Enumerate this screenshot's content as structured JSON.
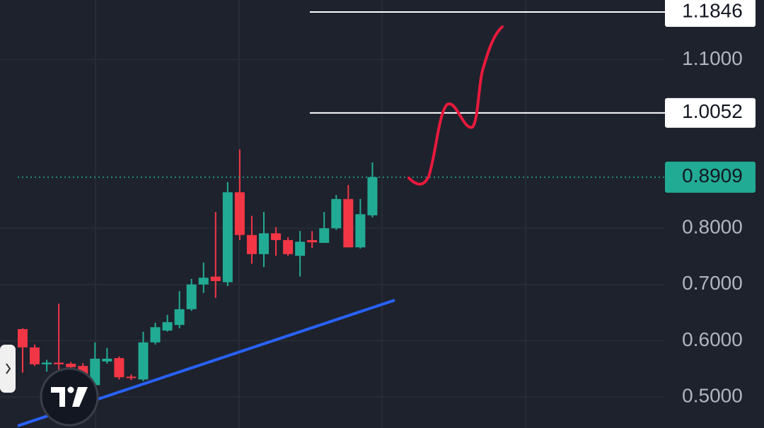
{
  "chart_data": {
    "type": "candlestick",
    "open": [
      0.6206,
      0.588,
      0.558,
      0.561,
      0.559,
      0.555,
      0.521,
      0.563,
      0.569,
      0.536,
      0.531,
      0.597,
      0.618,
      0.628,
      0.656,
      0.7,
      0.714,
      0.704,
      0.864,
      0.788,
      0.754,
      0.791,
      0.779,
      0.751,
      0.779,
      0.774,
      0.8,
      0.852,
      0.766,
      0.823
    ],
    "high": [
      0.622,
      0.593,
      0.566,
      0.666,
      0.562,
      0.56,
      0.597,
      0.587,
      0.572,
      0.54,
      0.616,
      0.632,
      0.646,
      0.688,
      0.71,
      0.739,
      0.829,
      0.882,
      0.94,
      0.822,
      0.829,
      0.802,
      0.784,
      0.795,
      0.795,
      0.829,
      0.859,
      0.877,
      0.852,
      0.917
    ],
    "low": [
      0.543,
      0.555,
      0.545,
      0.509,
      0.54,
      0.51,
      0.518,
      0.559,
      0.531,
      0.53,
      0.528,
      0.593,
      0.616,
      0.622,
      0.653,
      0.685,
      0.676,
      0.697,
      0.779,
      0.737,
      0.731,
      0.751,
      0.751,
      0.714,
      0.765,
      0.774,
      0.797,
      0.766,
      0.764,
      0.819
    ],
    "close": [
      0.588,
      0.558,
      0.561,
      0.558,
      0.553,
      0.52,
      0.568,
      0.568,
      0.535,
      0.534,
      0.597,
      0.624,
      0.633,
      0.656,
      0.7,
      0.712,
      0.706,
      0.864,
      0.788,
      0.754,
      0.791,
      0.779,
      0.754,
      0.776,
      0.775,
      0.8,
      0.852,
      0.766,
      0.825,
      0.8909
    ],
    "up_color": "#22ab94",
    "down_color": "#f23645",
    "ylim": [
      0.4447,
      1.206
    ],
    "yticks": [
      {
        "value": 0.5,
        "label": "0.5000"
      },
      {
        "value": 0.6,
        "label": "0.6000"
      },
      {
        "value": 0.7,
        "label": "0.7000"
      },
      {
        "value": 0.8,
        "label": "0.8000"
      },
      {
        "value": 1.1,
        "label": "1.1000"
      }
    ],
    "grid": true,
    "price_lines": [
      1.1846,
      1.0052
    ],
    "last_price": 0.8909
  }
}
